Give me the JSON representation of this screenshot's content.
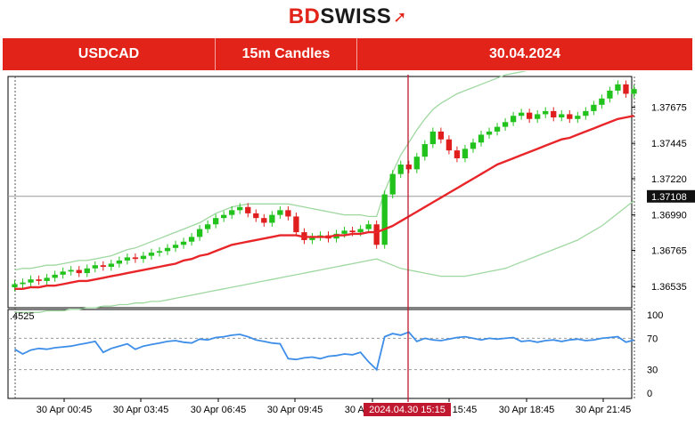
{
  "brand": {
    "bd": "BD",
    "swiss": "SWISS",
    "full": "BDSWISS"
  },
  "banner": {
    "symbol": "USDCAD",
    "timeframe": "15m Candles",
    "date": "30.04.2024"
  },
  "colors": {
    "brand_red": "#e2231a",
    "bull": "#22c21d",
    "bear": "#e01e1e",
    "ma": "#e8262a",
    "band": "#9ed8a0",
    "rsi": "#3d8ee8",
    "crosshair": "#c0182e"
  },
  "chart_data": [
    {
      "type": "candlestick",
      "symbol": "USDCAD",
      "ylim": [
        1.364,
        1.3787
      ],
      "y_ticks": [
        "1.36535",
        "1.36765",
        "1.36990",
        "1.37220",
        "1.37445",
        "1.37675"
      ],
      "y_tick_values": [
        1.36535,
        1.36765,
        1.3699,
        1.3722,
        1.37445,
        1.37675
      ],
      "current_price_label": "1.37108",
      "current_price": 1.37108,
      "x_ticks": [
        "30 Apr 00:45",
        "30 Apr 03:45",
        "30 Apr 06:45",
        "30 Apr 09:45",
        "30 Apr 12:45",
        "30 Apr 15:45",
        "30 Apr 18:45",
        "30 Apr 21:45"
      ],
      "crosshair_label": "2024.04.30 15:15",
      "candle_close": [
        1.3655,
        1.3656,
        1.3658,
        1.3657,
        1.3659,
        1.3661,
        1.3663,
        1.3664,
        1.3662,
        1.3665,
        1.3667,
        1.3666,
        1.3668,
        1.367,
        1.3672,
        1.3671,
        1.3673,
        1.3675,
        1.3676,
        1.3678,
        1.368,
        1.3682,
        1.3685,
        1.369,
        1.3693,
        1.3697,
        1.3699,
        1.3702,
        1.3704,
        1.37,
        1.3697,
        1.3694,
        1.3699,
        1.3702,
        1.3698,
        1.3688,
        1.3683,
        1.3685,
        1.3686,
        1.3684,
        1.3687,
        1.3689,
        1.3688,
        1.369,
        1.3693,
        1.368,
        1.3712,
        1.3725,
        1.3731,
        1.3728,
        1.3736,
        1.3744,
        1.3752,
        1.3747,
        1.374,
        1.3735,
        1.3741,
        1.3745,
        1.375,
        1.3752,
        1.3755,
        1.3758,
        1.3762,
        1.3764,
        1.376,
        1.3763,
        1.3765,
        1.3761,
        1.3763,
        1.376,
        1.3762,
        1.3765,
        1.3769,
        1.3773,
        1.3778,
        1.3782,
        1.3776,
        1.3779
      ],
      "ma": [
        1.3652,
        1.3652,
        1.3653,
        1.3653,
        1.3654,
        1.3654,
        1.3655,
        1.3656,
        1.3657,
        1.3657,
        1.3658,
        1.3659,
        1.366,
        1.3661,
        1.3662,
        1.3663,
        1.3664,
        1.3665,
        1.3666,
        1.3667,
        1.3668,
        1.367,
        1.3671,
        1.3673,
        1.3674,
        1.3676,
        1.3678,
        1.368,
        1.3681,
        1.3682,
        1.3683,
        1.3684,
        1.3685,
        1.3686,
        1.3686,
        1.3686,
        1.3685,
        1.3685,
        1.3685,
        1.3685,
        1.3686,
        1.3686,
        1.3687,
        1.3687,
        1.3688,
        1.3688,
        1.369,
        1.3692,
        1.3695,
        1.3698,
        1.3701,
        1.3704,
        1.3707,
        1.371,
        1.3713,
        1.3716,
        1.3719,
        1.3722,
        1.3725,
        1.3728,
        1.3731,
        1.3733,
        1.3735,
        1.3737,
        1.3739,
        1.3741,
        1.3743,
        1.3745,
        1.3747,
        1.3748,
        1.375,
        1.3752,
        1.3754,
        1.3756,
        1.3758,
        1.376,
        1.3761,
        1.3762
      ],
      "upper_band": [
        1.3664,
        1.3665,
        1.3665,
        1.3666,
        1.3667,
        1.3667,
        1.3668,
        1.3669,
        1.367,
        1.367,
        1.3671,
        1.3672,
        1.3673,
        1.3675,
        1.3677,
        1.3678,
        1.368,
        1.3682,
        1.3684,
        1.3686,
        1.3688,
        1.369,
        1.3692,
        1.3694,
        1.3697,
        1.37,
        1.3702,
        1.3704,
        1.3705,
        1.3706,
        1.3706,
        1.3706,
        1.3706,
        1.3706,
        1.3706,
        1.3705,
        1.3704,
        1.3703,
        1.3702,
        1.3701,
        1.37,
        1.3699,
        1.3699,
        1.3699,
        1.3698,
        1.3698,
        1.3714,
        1.3726,
        1.3737,
        1.3745,
        1.3753,
        1.376,
        1.3766,
        1.377,
        1.3773,
        1.3776,
        1.3778,
        1.378,
        1.3782,
        1.3784,
        1.3786,
        1.3788,
        1.3789,
        1.379,
        1.3791,
        1.3792,
        1.3793,
        1.3794,
        1.3795,
        1.3796,
        1.3797,
        1.3798,
        1.3799,
        1.38,
        1.3801,
        1.3802,
        1.3803,
        1.3804
      ],
      "lower_band": [
        1.3637,
        1.3637,
        1.3637,
        1.3637,
        1.3638,
        1.3638,
        1.3638,
        1.3639,
        1.3639,
        1.364,
        1.364,
        1.3641,
        1.3641,
        1.3642,
        1.3642,
        1.3643,
        1.3643,
        1.3644,
        1.3644,
        1.3645,
        1.3646,
        1.3647,
        1.3648,
        1.3649,
        1.365,
        1.3651,
        1.3652,
        1.3653,
        1.3654,
        1.3655,
        1.3656,
        1.3657,
        1.3658,
        1.3659,
        1.366,
        1.3661,
        1.3662,
        1.3663,
        1.3664,
        1.3665,
        1.3666,
        1.3667,
        1.3668,
        1.3669,
        1.367,
        1.3671,
        1.3669,
        1.3667,
        1.3665,
        1.3664,
        1.3663,
        1.3662,
        1.3661,
        1.366,
        1.366,
        1.366,
        1.366,
        1.3661,
        1.3662,
        1.3663,
        1.3664,
        1.3665,
        1.3667,
        1.3669,
        1.3671,
        1.3673,
        1.3675,
        1.3677,
        1.3679,
        1.3681,
        1.3683,
        1.3686,
        1.3689,
        1.3692,
        1.3696,
        1.37,
        1.3704,
        1.3708
      ]
    },
    {
      "type": "line",
      "name_label": ".4525",
      "ylim": [
        0,
        100
      ],
      "y_ticks": [
        "100",
        "70",
        "30",
        "0"
      ],
      "y_tick_values": [
        100,
        70,
        30,
        0
      ],
      "levels": [
        70,
        30
      ],
      "values": [
        56,
        50,
        55,
        57,
        56,
        58,
        59,
        60,
        62,
        64,
        66,
        52,
        57,
        60,
        63,
        56,
        60,
        62,
        64,
        66,
        67,
        65,
        64,
        69,
        68,
        71,
        72,
        74,
        75,
        72,
        68,
        66,
        64,
        63,
        44,
        43,
        45,
        46,
        44,
        47,
        48,
        50,
        49,
        52,
        40,
        30,
        72,
        76,
        74,
        78,
        66,
        70,
        68,
        67,
        69,
        71,
        72,
        70,
        68,
        70,
        69,
        70,
        71,
        66,
        67,
        65,
        67,
        68,
        66,
        68,
        69,
        67,
        68,
        70,
        71,
        72,
        65,
        68
      ]
    }
  ]
}
